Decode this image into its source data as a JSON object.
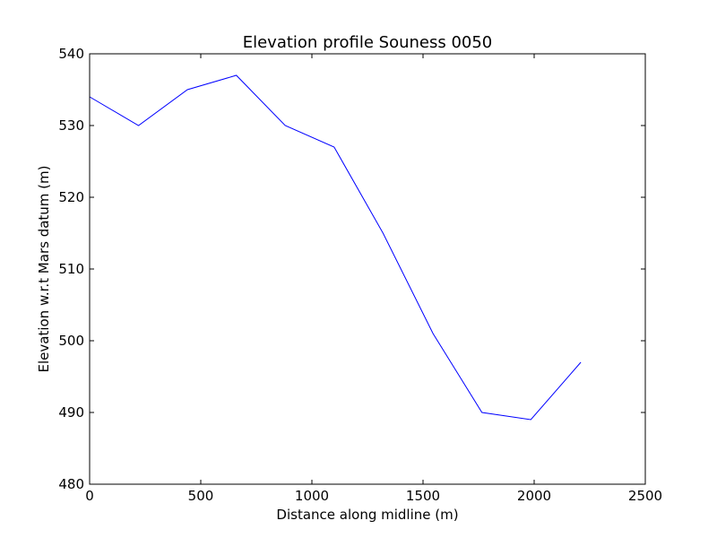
{
  "chart_data": {
    "type": "line",
    "title": "Elevation profile Souness 0050",
    "xlabel": "Distance along midline (m)",
    "ylabel": "Elevation w.r.t Mars datum (m)",
    "xlim": [
      0,
      2500
    ],
    "ylim": [
      480,
      540
    ],
    "xticks": [
      0,
      500,
      1000,
      1500,
      2000,
      2500
    ],
    "yticks": [
      480,
      490,
      500,
      510,
      520,
      530,
      540
    ],
    "xtick_labels": [
      "0",
      "500",
      "1000",
      "1500",
      "2000",
      "2500"
    ],
    "ytick_labels": [
      "480",
      "490",
      "500",
      "510",
      "520",
      "530",
      "540"
    ],
    "grid": false,
    "series": [
      {
        "color": "#0000ff",
        "x": [
          0,
          220,
          440,
          660,
          880,
          1100,
          1320,
          1545,
          1765,
          1985,
          2210
        ],
        "y": [
          534,
          530,
          535,
          537,
          530,
          527,
          515,
          501,
          490,
          489,
          497
        ]
      }
    ]
  }
}
